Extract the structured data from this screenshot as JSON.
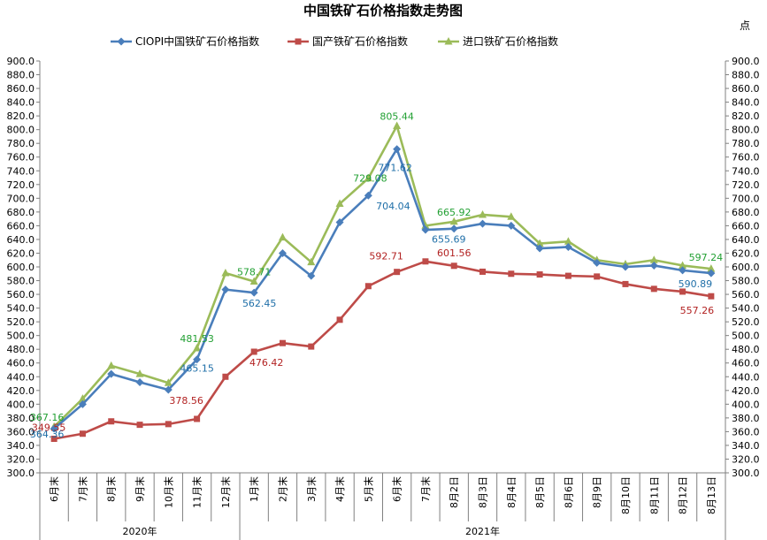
{
  "chart_data": {
    "type": "line",
    "title": "中国铁矿石价格指数走势图",
    "unit_right": "点",
    "categories": [
      "6月末",
      "7月末",
      "8月末",
      "9月末",
      "10月末",
      "11月末",
      "12月末",
      "1月末",
      "2月末",
      "3月末",
      "4月末",
      "5月末",
      "6月末",
      "7月末",
      "8月2日",
      "8月3日",
      "8月4日",
      "8月5日",
      "8月6日",
      "8月9日",
      "8月10日",
      "8月11日",
      "8月12日",
      "8月13日"
    ],
    "groups": [
      {
        "label": "2020年",
        "start": 0,
        "end": 6
      },
      {
        "label": "2021年",
        "start": 7,
        "end": 23
      }
    ],
    "ylim": [
      300,
      900
    ],
    "yticks": [
      "300.0",
      "320.0",
      "340.0",
      "360.0",
      "380.0",
      "400.0",
      "420.0",
      "440.0",
      "460.0",
      "480.0",
      "500.0",
      "520.0",
      "540.0",
      "560.0",
      "580.0",
      "600.0",
      "620.0",
      "640.0",
      "660.0",
      "680.0",
      "700.0",
      "720.0",
      "740.0",
      "760.0",
      "780.0",
      "800.0",
      "820.0",
      "840.0",
      "860.0",
      "880.0",
      "900.0"
    ],
    "grid": false,
    "legend_position": "top",
    "series": [
      {
        "name": "CIOPI中国铁矿石价格指数",
        "color": "#4a7ebb",
        "marker": "diamond",
        "values": [
          364.36,
          400,
          444,
          432,
          421,
          465.15,
          567,
          562.45,
          620,
          587,
          665,
          704.04,
          771.62,
          654,
          655.69,
          663,
          660,
          627,
          629,
          606,
          600,
          602,
          595,
          590.89
        ]
      },
      {
        "name": "国产铁矿石价格指数",
        "color": "#be4b48",
        "marker": "square",
        "values": [
          349.55,
          357,
          375,
          370,
          371,
          378.56,
          440,
          476.42,
          489,
          484,
          523,
          572,
          592.71,
          608,
          601.56,
          593,
          590,
          589,
          587,
          586,
          575,
          568,
          564,
          557.26
        ]
      },
      {
        "name": "进口铁矿石价格指数",
        "color": "#9bbb59",
        "marker": "triangle",
        "values": [
          367.16,
          408,
          456,
          444,
          431,
          481.53,
          591,
          578.71,
          643,
          607,
          692,
          729.08,
          805.44,
          660,
          665.92,
          676,
          673,
          634,
          637,
          610,
          604,
          610,
          602,
          597.24
        ]
      }
    ],
    "data_labels": [
      {
        "series": 0,
        "index": 0,
        "text": "364.36"
      },
      {
        "series": 0,
        "index": 5,
        "text": "465.15"
      },
      {
        "series": 0,
        "index": 7,
        "text": "562.45"
      },
      {
        "series": 0,
        "index": 11,
        "text": "704.04"
      },
      {
        "series": 0,
        "index": 12,
        "text": "771.62"
      },
      {
        "series": 0,
        "index": 14,
        "text": "655.69"
      },
      {
        "series": 0,
        "index": 23,
        "text": "590.89"
      },
      {
        "series": 1,
        "index": 0,
        "text": "349.55"
      },
      {
        "series": 1,
        "index": 5,
        "text": "378.56"
      },
      {
        "series": 1,
        "index": 7,
        "text": "476.42"
      },
      {
        "series": 1,
        "index": 12,
        "text": "592.71"
      },
      {
        "series": 1,
        "index": 14,
        "text": "601.56"
      },
      {
        "series": 1,
        "index": 23,
        "text": "557.26"
      },
      {
        "series": 2,
        "index": 0,
        "text": "367.16"
      },
      {
        "series": 2,
        "index": 5,
        "text": "481.53"
      },
      {
        "series": 2,
        "index": 7,
        "text": "578.71"
      },
      {
        "series": 2,
        "index": 11,
        "text": "729.08"
      },
      {
        "series": 2,
        "index": 12,
        "text": "805.44"
      },
      {
        "series": 2,
        "index": 14,
        "text": "665.92"
      },
      {
        "series": 2,
        "index": 23,
        "text": "597.24"
      }
    ]
  }
}
